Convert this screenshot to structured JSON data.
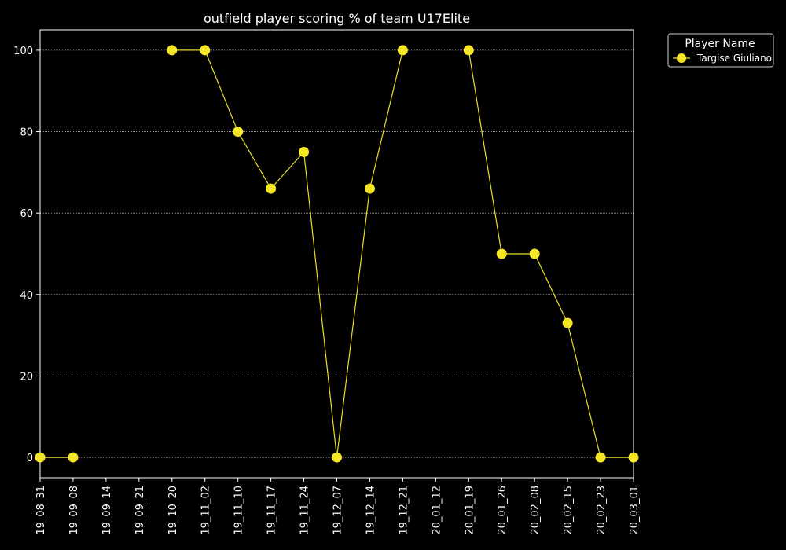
{
  "chart_data": {
    "type": "line",
    "title": "outfield player scoring % of team U17Elite",
    "xlabel": "",
    "ylabel": "",
    "categories": [
      "19_08_31",
      "19_09_08",
      "19_09_14",
      "19_09_21",
      "19_10_20",
      "19_11_02",
      "19_11_10",
      "19_11_17",
      "19_11_24",
      "19_12_07",
      "19_12_14",
      "19_12_21",
      "20_01_12",
      "20_01_19",
      "20_01_26",
      "20_02_08",
      "20_02_15",
      "20_02_23",
      "20_03_01"
    ],
    "series": [
      {
        "name": "Targise Giuliano",
        "values": [
          0,
          0,
          null,
          null,
          100,
          100,
          80,
          66,
          75,
          0,
          66,
          100,
          null,
          100,
          50,
          50,
          33,
          0,
          0
        ]
      }
    ],
    "ylim": [
      -5,
      105
    ],
    "yticks": [
      0,
      20,
      40,
      60,
      80,
      100
    ],
    "grid": true,
    "legend": {
      "title": "Player Name",
      "placement": "outside-top-right"
    },
    "colors": {
      "background": "#000000",
      "line": "#e8e020",
      "marker": "#f5e626",
      "axis": "#ffffff",
      "grid": "#aaaaaa"
    }
  }
}
